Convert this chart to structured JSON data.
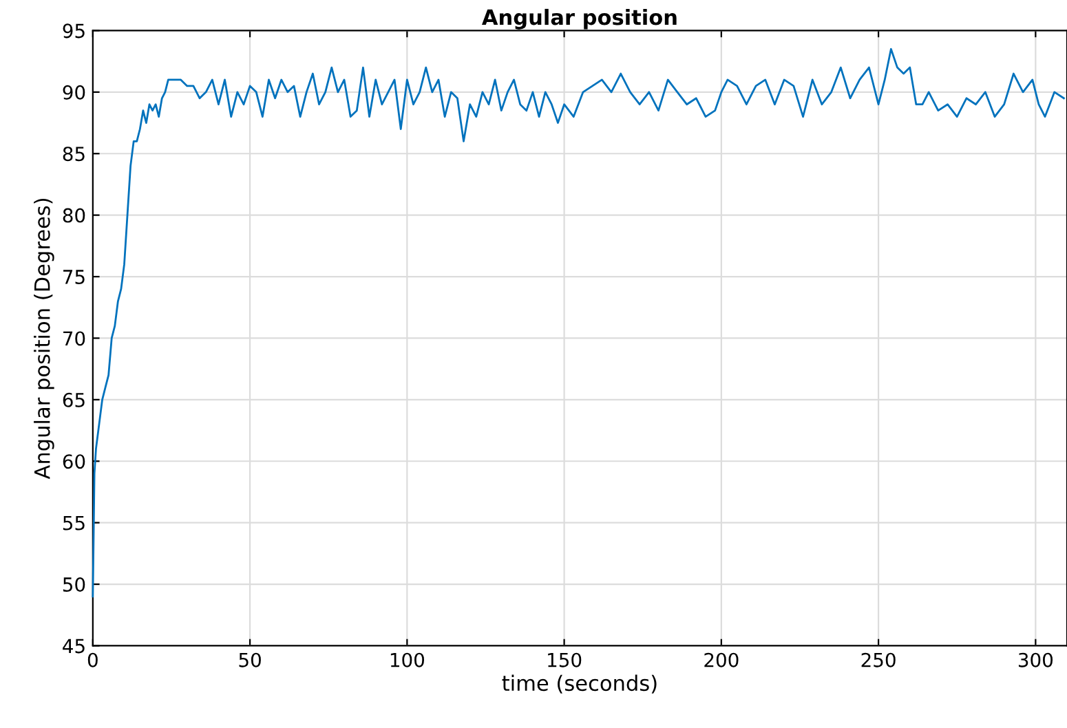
{
  "chart_data": {
    "type": "line",
    "title": "Angular position",
    "xlabel": "time (seconds)",
    "ylabel": "Angular position (Degrees)",
    "xlim": [
      0,
      310
    ],
    "ylim": [
      45,
      95
    ],
    "xticks": [
      0,
      50,
      100,
      150,
      200,
      250,
      300
    ],
    "yticks": [
      45,
      50,
      55,
      60,
      65,
      70,
      75,
      80,
      85,
      90,
      95
    ],
    "grid": true,
    "series": [
      {
        "color": "#0072bd",
        "x": [
          0,
          0.5,
          1,
          2,
          3,
          4,
          5,
          6,
          7,
          8,
          9,
          10,
          11,
          12,
          13,
          14,
          15,
          16,
          17,
          18,
          19,
          20,
          21,
          22,
          23,
          24,
          26,
          28,
          30,
          32,
          34,
          36,
          38,
          40,
          42,
          44,
          46,
          48,
          50,
          52,
          54,
          56,
          58,
          60,
          62,
          64,
          66,
          68,
          70,
          72,
          74,
          76,
          78,
          80,
          82,
          84,
          86,
          88,
          90,
          92,
          94,
          96,
          98,
          100,
          102,
          104,
          106,
          108,
          110,
          112,
          114,
          116,
          118,
          120,
          122,
          124,
          126,
          128,
          130,
          132,
          134,
          136,
          138,
          140,
          142,
          144,
          146,
          148,
          150,
          153,
          156,
          159,
          162,
          165,
          168,
          171,
          174,
          177,
          180,
          183,
          186,
          189,
          192,
          195,
          198,
          200,
          202,
          205,
          208,
          211,
          214,
          217,
          220,
          223,
          226,
          229,
          232,
          235,
          238,
          241,
          244,
          247,
          250,
          252,
          254,
          256,
          258,
          260,
          262,
          264,
          266,
          269,
          272,
          275,
          278,
          281,
          284,
          287,
          290,
          293,
          296,
          299,
          301,
          303,
          306,
          309
        ],
        "values": [
          49,
          59,
          61,
          63,
          65,
          66,
          67,
          70,
          71,
          73,
          74,
          76,
          80,
          84,
          86,
          86,
          87,
          88.5,
          87.5,
          89,
          88.5,
          89,
          88,
          89.5,
          90,
          91,
          91,
          91,
          90.5,
          90.5,
          89.5,
          90,
          91,
          89,
          91,
          88,
          90,
          89,
          90.5,
          90,
          88,
          91,
          89.5,
          91,
          90,
          90.5,
          88,
          90,
          91.5,
          89,
          90,
          92,
          90,
          91,
          88,
          88.5,
          92,
          88,
          91,
          89,
          90,
          91,
          87,
          91,
          89,
          90,
          92,
          90,
          91,
          88,
          90,
          89.5,
          86,
          89,
          88,
          90,
          89,
          91,
          88.5,
          90,
          91,
          89,
          88.5,
          90,
          88,
          90,
          89,
          87.5,
          89,
          88,
          90,
          90.5,
          91,
          90,
          91.5,
          90,
          89,
          90,
          88.5,
          91,
          90,
          89,
          89.5,
          88,
          88.5,
          90,
          91,
          90.5,
          89,
          90.5,
          91,
          89,
          91,
          90.5,
          88,
          91,
          89,
          90,
          92,
          89.5,
          91,
          92,
          89,
          91,
          93.5,
          92,
          91.5,
          92,
          89,
          89,
          90,
          88.5,
          89,
          88,
          89.5,
          89,
          90,
          88,
          89,
          91.5,
          90,
          91,
          89,
          88,
          90,
          89.5
        ]
      }
    ]
  }
}
